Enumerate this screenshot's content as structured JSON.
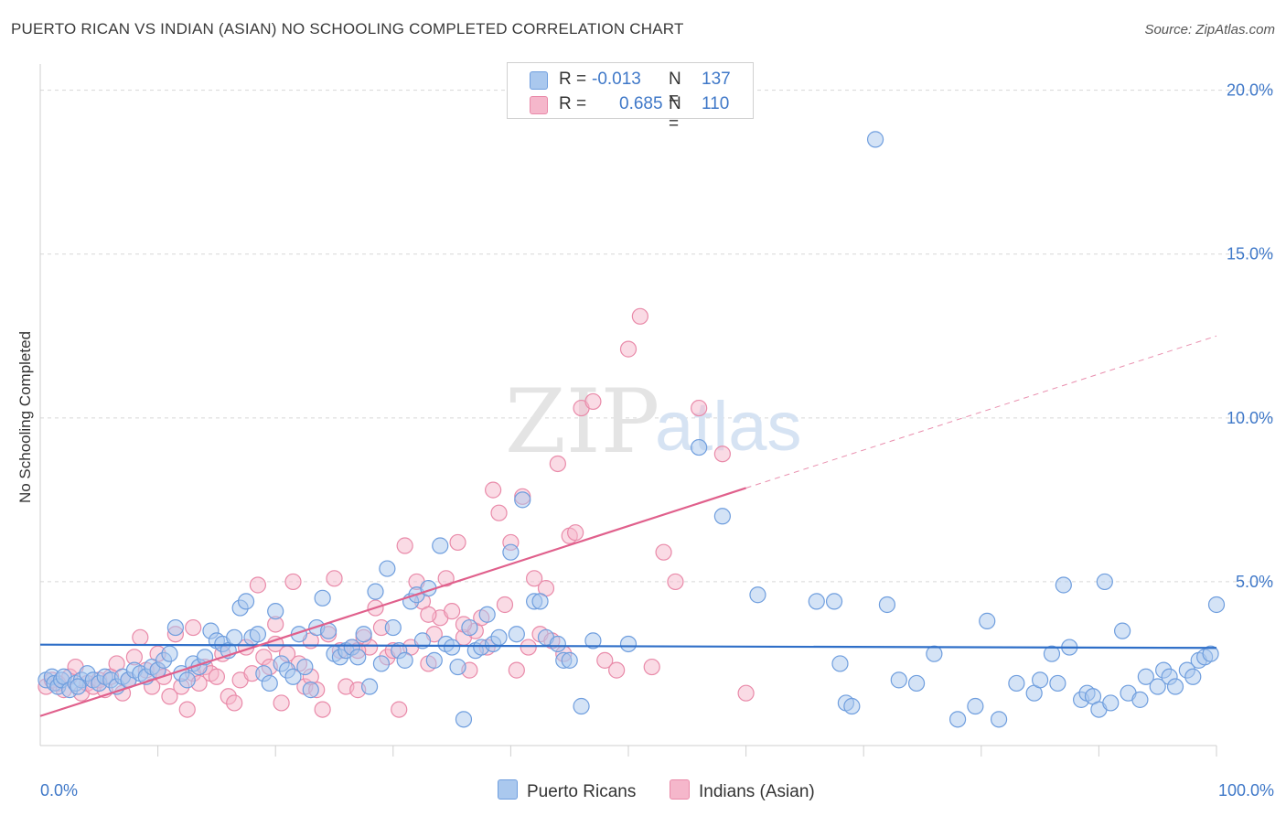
{
  "header": {
    "title": "PUERTO RICAN VS INDIAN (ASIAN) NO SCHOOLING COMPLETED CORRELATION CHART",
    "source": "Source: ZipAtlas.com"
  },
  "watermark": {
    "zip": "ZIP",
    "atlas": "atlas"
  },
  "legend_box": {
    "rows": [
      {
        "r_label": "R =",
        "r_value": "-0.013",
        "n_label": "N =",
        "n_value": "137"
      },
      {
        "r_label": "R =",
        "r_value": "0.685",
        "n_label": "N =",
        "n_value": "110"
      }
    ]
  },
  "bottom_legend": {
    "blue": "Puerto Ricans",
    "pink": "Indians (Asian)"
  },
  "colors": {
    "blue_fill": "#aac8ee",
    "blue_stroke": "#6f9ede",
    "blue_line": "#2f6fc8",
    "pink_fill": "#f5b7cb",
    "pink_stroke": "#e98aa9",
    "pink_line": "#e0608c",
    "grid": "#d8d8d8",
    "tick_text": "#3f78c8"
  },
  "chart_data": {
    "type": "scatter",
    "title": "PUERTO RICAN VS INDIAN (ASIAN) NO SCHOOLING COMPLETED CORRELATION CHART",
    "xlabel": "",
    "ylabel": "No Schooling Completed",
    "xlim": [
      0,
      100
    ],
    "ylim": [
      0,
      20.8
    ],
    "x_tick_labels": [
      "0.0%",
      "100.0%"
    ],
    "y_ticks": [
      5,
      10,
      15,
      20
    ],
    "y_tick_labels": [
      "5.0%",
      "10.0%",
      "15.0%",
      "20.0%"
    ],
    "grid": true,
    "legend_placement": "top-center",
    "series": [
      {
        "name": "Puerto Ricans",
        "r": -0.013,
        "n": 137,
        "trend": {
          "x0": 0,
          "y0": 3.08,
          "x1": 100,
          "y1": 2.98,
          "solid_until": 100
        },
        "points": [
          [
            0.5,
            2.0
          ],
          [
            1,
            2.1
          ],
          [
            1.2,
            1.9
          ],
          [
            1.5,
            1.8
          ],
          [
            1.8,
            2.0
          ],
          [
            2,
            2.1
          ],
          [
            2.5,
            1.7
          ],
          [
            3,
            1.9
          ],
          [
            3.5,
            2.0
          ],
          [
            4,
            2.2
          ],
          [
            4.5,
            2.0
          ],
          [
            5,
            1.9
          ],
          [
            5.5,
            2.1
          ],
          [
            6,
            2.0
          ],
          [
            6.5,
            1.8
          ],
          [
            7,
            2.1
          ],
          [
            7.5,
            2.0
          ],
          [
            8,
            2.3
          ],
          [
            8.5,
            2.2
          ],
          [
            9,
            2.1
          ],
          [
            9.5,
            2.4
          ],
          [
            10,
            2.3
          ],
          [
            10.5,
            2.6
          ],
          [
            11,
            2.8
          ],
          [
            11.5,
            3.6
          ],
          [
            12,
            2.2
          ],
          [
            12.5,
            2.0
          ],
          [
            13,
            2.5
          ],
          [
            13.5,
            2.4
          ],
          [
            14,
            2.7
          ],
          [
            14.5,
            3.5
          ],
          [
            15,
            3.2
          ],
          [
            15.5,
            3.1
          ],
          [
            16,
            2.9
          ],
          [
            16.5,
            3.3
          ],
          [
            17,
            4.2
          ],
          [
            17.5,
            4.4
          ],
          [
            18,
            3.3
          ],
          [
            18.5,
            3.4
          ],
          [
            19,
            2.2
          ],
          [
            19.5,
            1.9
          ],
          [
            20,
            4.1
          ],
          [
            20.5,
            2.5
          ],
          [
            21,
            2.3
          ],
          [
            21.5,
            2.1
          ],
          [
            22,
            3.4
          ],
          [
            22.5,
            2.4
          ],
          [
            23,
            1.7
          ],
          [
            23.5,
            3.6
          ],
          [
            24,
            4.5
          ],
          [
            24.5,
            3.5
          ],
          [
            25,
            2.8
          ],
          [
            25.5,
            2.7
          ],
          [
            26,
            2.9
          ],
          [
            26.5,
            3.0
          ],
          [
            27,
            2.7
          ],
          [
            27.5,
            3.4
          ],
          [
            28,
            1.8
          ],
          [
            28.5,
            4.7
          ],
          [
            29,
            2.5
          ],
          [
            29.5,
            5.4
          ],
          [
            30,
            3.6
          ],
          [
            30.5,
            2.9
          ],
          [
            31,
            2.6
          ],
          [
            31.5,
            4.4
          ],
          [
            32,
            4.6
          ],
          [
            32.5,
            3.2
          ],
          [
            33,
            4.8
          ],
          [
            33.5,
            2.6
          ],
          [
            34,
            6.1
          ],
          [
            34.5,
            3.1
          ],
          [
            35,
            3.0
          ],
          [
            35.5,
            2.4
          ],
          [
            36,
            0.8
          ],
          [
            36.5,
            3.6
          ],
          [
            37,
            2.9
          ],
          [
            37.5,
            3.0
          ],
          [
            38,
            4.0
          ],
          [
            38.5,
            3.1
          ],
          [
            39,
            3.3
          ],
          [
            40,
            5.9
          ],
          [
            40.5,
            3.4
          ],
          [
            41,
            7.5
          ],
          [
            42,
            4.4
          ],
          [
            42.5,
            4.4
          ],
          [
            43,
            3.3
          ],
          [
            44,
            3.1
          ],
          [
            44.5,
            2.6
          ],
          [
            45,
            2.6
          ],
          [
            46,
            1.2
          ],
          [
            47,
            3.2
          ],
          [
            50,
            3.1
          ],
          [
            56,
            9.1
          ],
          [
            58,
            7.0
          ],
          [
            61,
            4.6
          ],
          [
            66,
            4.4
          ],
          [
            67.5,
            4.4
          ],
          [
            68,
            2.5
          ],
          [
            68.5,
            1.3
          ],
          [
            69,
            1.2
          ],
          [
            71,
            18.5
          ],
          [
            72,
            4.3
          ],
          [
            73,
            2.0
          ],
          [
            74.5,
            1.9
          ],
          [
            76,
            2.8
          ],
          [
            78,
            0.8
          ],
          [
            79.5,
            1.2
          ],
          [
            80.5,
            3.8
          ],
          [
            81.5,
            0.8
          ],
          [
            83,
            1.9
          ],
          [
            84.5,
            1.6
          ],
          [
            85,
            2.0
          ],
          [
            86,
            2.8
          ],
          [
            86.5,
            1.9
          ],
          [
            87,
            4.9
          ],
          [
            87.5,
            3.0
          ],
          [
            88.5,
            1.4
          ],
          [
            89,
            1.6
          ],
          [
            89.5,
            1.5
          ],
          [
            90,
            1.1
          ],
          [
            90.5,
            5.0
          ],
          [
            91,
            1.3
          ],
          [
            92,
            3.5
          ],
          [
            92.5,
            1.6
          ],
          [
            93.5,
            1.4
          ],
          [
            94,
            2.1
          ],
          [
            95,
            1.8
          ],
          [
            95.5,
            2.3
          ],
          [
            96,
            2.1
          ],
          [
            96.5,
            1.8
          ],
          [
            97.5,
            2.3
          ],
          [
            98,
            2.1
          ],
          [
            98.5,
            2.6
          ],
          [
            99,
            2.7
          ],
          [
            99.5,
            2.8
          ],
          [
            100,
            4.3
          ],
          [
            3.2,
            1.8
          ]
        ]
      },
      {
        "name": "Indians (Asian)",
        "r": 0.685,
        "n": 110,
        "trend": {
          "x0": 0,
          "y0": 0.9,
          "x1": 100,
          "y1": 12.5,
          "solid_until": 60
        },
        "points": [
          [
            0.5,
            1.8
          ],
          [
            1,
            2.0
          ],
          [
            1.5,
            1.9
          ],
          [
            2,
            1.7
          ],
          [
            2.5,
            2.1
          ],
          [
            3,
            2.4
          ],
          [
            3.5,
            1.6
          ],
          [
            4,
            1.9
          ],
          [
            4.5,
            1.8
          ],
          [
            5,
            2.0
          ],
          [
            5.5,
            1.7
          ],
          [
            6,
            2.1
          ],
          [
            6.5,
            2.5
          ],
          [
            7,
            1.6
          ],
          [
            7.5,
            2.0
          ],
          [
            8,
            2.7
          ],
          [
            8.5,
            3.3
          ],
          [
            9,
            2.3
          ],
          [
            9.5,
            1.8
          ],
          [
            10,
            2.3
          ],
          [
            10.5,
            2.1
          ],
          [
            11,
            1.5
          ],
          [
            11.5,
            3.4
          ],
          [
            12,
            1.8
          ],
          [
            12.5,
            1.1
          ],
          [
            13,
            2.2
          ],
          [
            13.5,
            1.9
          ],
          [
            14,
            2.4
          ],
          [
            14.5,
            2.2
          ],
          [
            15,
            2.1
          ],
          [
            15.5,
            2.8
          ],
          [
            16,
            1.5
          ],
          [
            16.5,
            1.3
          ],
          [
            17,
            2.0
          ],
          [
            17.5,
            3.0
          ],
          [
            18,
            2.2
          ],
          [
            18.5,
            4.9
          ],
          [
            19,
            2.7
          ],
          [
            19.5,
            2.4
          ],
          [
            20,
            3.7
          ],
          [
            20.5,
            1.3
          ],
          [
            21,
            2.8
          ],
          [
            21.5,
            5.0
          ],
          [
            22,
            2.5
          ],
          [
            22.5,
            1.8
          ],
          [
            23,
            3.2
          ],
          [
            23.5,
            1.7
          ],
          [
            24,
            1.1
          ],
          [
            24.5,
            3.4
          ],
          [
            25,
            5.1
          ],
          [
            25.5,
            2.9
          ],
          [
            26,
            1.8
          ],
          [
            26.5,
            3.0
          ],
          [
            27,
            1.7
          ],
          [
            27.5,
            3.3
          ],
          [
            28,
            3.0
          ],
          [
            28.5,
            4.2
          ],
          [
            29,
            3.6
          ],
          [
            29.5,
            2.7
          ],
          [
            30,
            2.9
          ],
          [
            30.5,
            1.1
          ],
          [
            31,
            6.1
          ],
          [
            31.5,
            3.0
          ],
          [
            32,
            5.0
          ],
          [
            32.5,
            4.4
          ],
          [
            33,
            2.5
          ],
          [
            33.5,
            3.4
          ],
          [
            34,
            3.9
          ],
          [
            34.5,
            5.1
          ],
          [
            35,
            4.1
          ],
          [
            35.5,
            6.2
          ],
          [
            36,
            3.3
          ],
          [
            36.5,
            2.3
          ],
          [
            37,
            3.5
          ],
          [
            37.5,
            3.9
          ],
          [
            38,
            3.0
          ],
          [
            38.5,
            7.8
          ],
          [
            39,
            7.1
          ],
          [
            39.5,
            4.3
          ],
          [
            40,
            6.2
          ],
          [
            40.5,
            2.3
          ],
          [
            41,
            7.6
          ],
          [
            41.5,
            3.0
          ],
          [
            42,
            5.1
          ],
          [
            42.5,
            3.4
          ],
          [
            43,
            4.8
          ],
          [
            43.5,
            3.2
          ],
          [
            44,
            8.6
          ],
          [
            44.5,
            2.8
          ],
          [
            45,
            6.4
          ],
          [
            45.5,
            6.5
          ],
          [
            46,
            10.3
          ],
          [
            47,
            10.5
          ],
          [
            48,
            2.6
          ],
          [
            49,
            2.3
          ],
          [
            50,
            12.1
          ],
          [
            51,
            13.1
          ],
          [
            52,
            2.4
          ],
          [
            53,
            5.9
          ],
          [
            54,
            5.0
          ],
          [
            56,
            10.3
          ],
          [
            58,
            8.9
          ],
          [
            60,
            1.6
          ],
          [
            10,
            2.8
          ],
          [
            13,
            3.6
          ],
          [
            20,
            3.1
          ],
          [
            23,
            2.1
          ],
          [
            27,
            2.9
          ],
          [
            33,
            4.0
          ],
          [
            36,
            3.7
          ]
        ]
      }
    ]
  }
}
